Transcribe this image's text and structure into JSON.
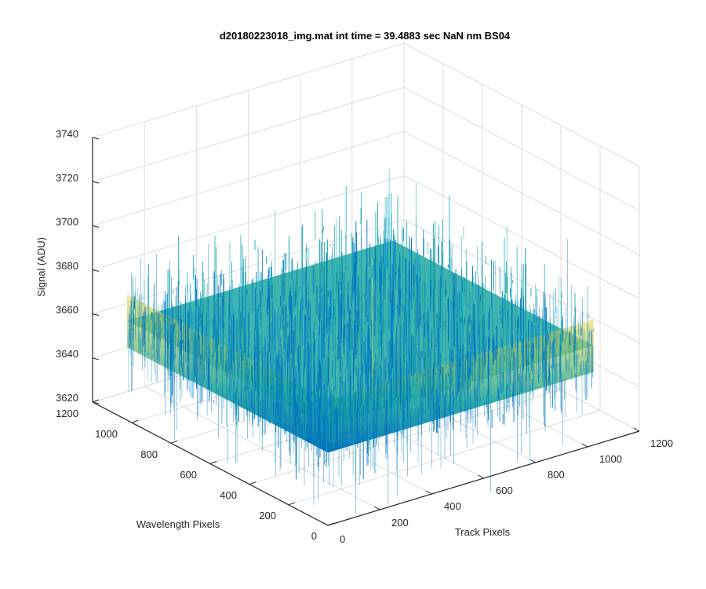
{
  "chart_data": {
    "type": "surface3d",
    "title": "d20180223018_img.mat int time = 39.4883 sec  NaN nm BS04",
    "xlabel": "Track Pixels",
    "ylabel": "Wavelength Pixels",
    "zlabel": "Signal (ADU)",
    "xlim": [
      0,
      1200
    ],
    "ylim": [
      0,
      1200
    ],
    "zlim": [
      3620,
      3740
    ],
    "xticks": [
      "0",
      "200",
      "400",
      "600",
      "800",
      "1000",
      "1200"
    ],
    "yticks": [
      "0",
      "200",
      "400",
      "600",
      "800",
      "1000",
      "1200"
    ],
    "zticks": [
      "3620",
      "3640",
      "3660",
      "3680",
      "3700",
      "3720",
      "3740"
    ],
    "surface": {
      "x_range": [
        0,
        1024
      ],
      "y_range": [
        0,
        1024
      ],
      "mean_signal": 3665,
      "noise_range": [
        3630,
        3725
      ]
    },
    "grid": true,
    "colormap": "parula",
    "colors": {
      "low": "#0072bd",
      "mid": "#1fa8a0",
      "high": "#e6d84e",
      "grid": "#dcdcdc",
      "axis": "#262626"
    }
  }
}
